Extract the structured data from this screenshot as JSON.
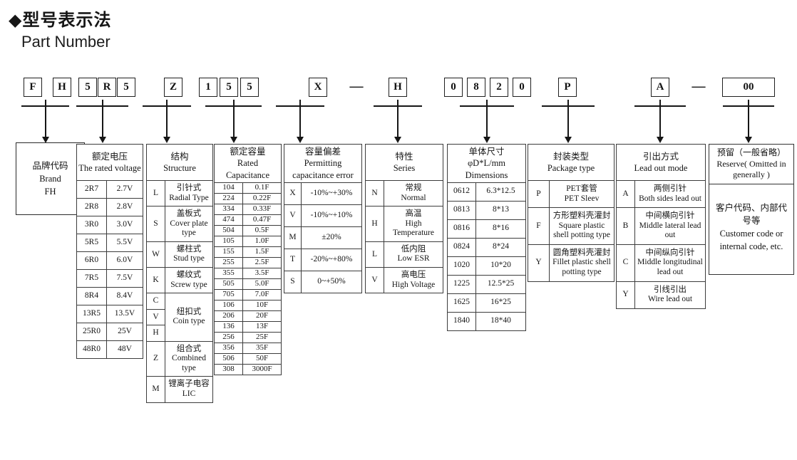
{
  "title": {
    "zh": "◆型号表示法",
    "en": "Part Number"
  },
  "part_code": {
    "separator": "—",
    "groups": [
      {
        "name": "brand",
        "chars": [
          "F",
          "H"
        ]
      },
      {
        "name": "voltage",
        "chars": [
          "5",
          "R",
          "5"
        ]
      },
      {
        "name": "structure",
        "chars": [
          "Z"
        ]
      },
      {
        "name": "capacitance",
        "chars": [
          "1",
          "5",
          "5"
        ]
      },
      {
        "name": "error",
        "chars": [
          "X"
        ]
      },
      {
        "name": "series",
        "chars": [
          "H"
        ]
      },
      {
        "name": "dimensions",
        "chars": [
          "0",
          "8",
          "2",
          "0"
        ]
      },
      {
        "name": "package",
        "chars": [
          "P"
        ]
      },
      {
        "name": "leadout",
        "chars": [
          "A"
        ]
      },
      {
        "name": "reserve",
        "chars": [
          "00"
        ]
      }
    ]
  },
  "tables": {
    "brand": {
      "lines": [
        "品牌代码",
        "Brand",
        "FH"
      ]
    },
    "voltage": {
      "header": [
        "额定电压",
        "The rated voltage"
      ],
      "rows": [
        [
          "2R7",
          "2.7V"
        ],
        [
          "2R8",
          "2.8V"
        ],
        [
          "3R0",
          "3.0V"
        ],
        [
          "5R5",
          "5.5V"
        ],
        [
          "6R0",
          "6.0V"
        ],
        [
          "7R5",
          "7.5V"
        ],
        [
          "8R4",
          "8.4V"
        ],
        [
          "13R5",
          "13.5V"
        ],
        [
          "25R0",
          "25V"
        ],
        [
          "48R0",
          "48V"
        ]
      ]
    },
    "structure": {
      "header": [
        "结构",
        "Structure"
      ],
      "rows": [
        {
          "codes": [
            "L"
          ],
          "zh": "引针式",
          "en": "Radial Type"
        },
        {
          "codes": [
            "S"
          ],
          "zh": "盖板式",
          "en": "Cover plate type"
        },
        {
          "codes": [
            "W"
          ],
          "zh": "螺柱式",
          "en": "Stud type"
        },
        {
          "codes": [
            "K"
          ],
          "zh": "螺纹式",
          "en": "Screw type"
        },
        {
          "codes": [
            "C",
            "V",
            "H"
          ],
          "zh": "纽扣式",
          "en": "Coin type"
        },
        {
          "codes": [
            "Z"
          ],
          "zh": "组合式",
          "en": "Combined type"
        },
        {
          "codes": [
            "M"
          ],
          "zh": "锂离子电容LIC",
          "en": ""
        }
      ]
    },
    "capacitance": {
      "header": [
        "额定容量",
        "Rated Capacitance"
      ],
      "rows": [
        [
          "104",
          "0.1F"
        ],
        [
          "224",
          "0.22F"
        ],
        [
          "334",
          "0.33F"
        ],
        [
          "474",
          "0.47F"
        ],
        [
          "504",
          "0.5F"
        ],
        [
          "105",
          "1.0F"
        ],
        [
          "155",
          "1.5F"
        ],
        [
          "255",
          "2.5F"
        ],
        [
          "355",
          "3.5F"
        ],
        [
          "505",
          "5.0F"
        ],
        [
          "705",
          "7.0F"
        ],
        [
          "106",
          "10F"
        ],
        [
          "206",
          "20F"
        ],
        [
          "136",
          "13F"
        ],
        [
          "256",
          "25F"
        ],
        [
          "356",
          "35F"
        ],
        [
          "506",
          "50F"
        ],
        [
          "308",
          "3000F"
        ]
      ]
    },
    "error": {
      "header": [
        "容量偏差",
        "Permitting capacitance error"
      ],
      "rows": [
        [
          "X",
          "-10%~+30%"
        ],
        [
          "V",
          "-10%~+10%"
        ],
        [
          "M",
          "±20%"
        ],
        [
          "T",
          "-20%~+80%"
        ],
        [
          "S",
          "0~+50%"
        ]
      ]
    },
    "series": {
      "header": [
        "特性",
        "Series"
      ],
      "rows": [
        {
          "codes": [
            "N"
          ],
          "zh": "常规",
          "en": "Normal"
        },
        {
          "codes": [
            "H"
          ],
          "zh": "高温",
          "en": "High Temperature"
        },
        {
          "codes": [
            "L"
          ],
          "zh": "低内阻",
          "en": "Low ESR"
        },
        {
          "codes": [
            "V"
          ],
          "zh": "高电压",
          "en": "High Voltage"
        }
      ]
    },
    "dimensions": {
      "header": [
        "单体尺寸",
        "φD*L/mm",
        "Dimensions"
      ],
      "rows": [
        [
          "0612",
          "6.3*12.5"
        ],
        [
          "0813",
          "8*13"
        ],
        [
          "0816",
          "8*16"
        ],
        [
          "0824",
          "8*24"
        ],
        [
          "1020",
          "10*20"
        ],
        [
          "1225",
          "12.5*25"
        ],
        [
          "1625",
          "16*25"
        ],
        [
          "1840",
          "18*40"
        ]
      ]
    },
    "package": {
      "header": [
        "封装类型",
        "Package type"
      ],
      "rows": [
        {
          "codes": [
            "P"
          ],
          "zh": "PET套管",
          "en": "PET Sleev"
        },
        {
          "codes": [
            "F"
          ],
          "zh": "方形塑料壳灌封",
          "en": "Square plastic shell potting type"
        },
        {
          "codes": [
            "Y"
          ],
          "zh": "圆角塑料壳灌封",
          "en": "Fillet plastic shell potting type"
        }
      ]
    },
    "leadout": {
      "header": [
        "引出方式",
        "Lead out mode"
      ],
      "rows": [
        {
          "codes": [
            "A"
          ],
          "zh": "两侧引针",
          "en": "Both sides lead out"
        },
        {
          "codes": [
            "B"
          ],
          "zh": "中间横向引针",
          "en": "Middle lateral lead out"
        },
        {
          "codes": [
            "C"
          ],
          "zh": "中间纵向引针",
          "en": "Middle longitudinal lead out"
        },
        {
          "codes": [
            "Y"
          ],
          "zh": "引线引出",
          "en": "Wire lead out"
        }
      ]
    },
    "reserve": {
      "header": [
        "预留（一般省略）",
        "Reserve( Omitted in generally )"
      ],
      "body": [
        "客户代码、内部代号等",
        "Customer code or internal code, etc."
      ]
    }
  }
}
